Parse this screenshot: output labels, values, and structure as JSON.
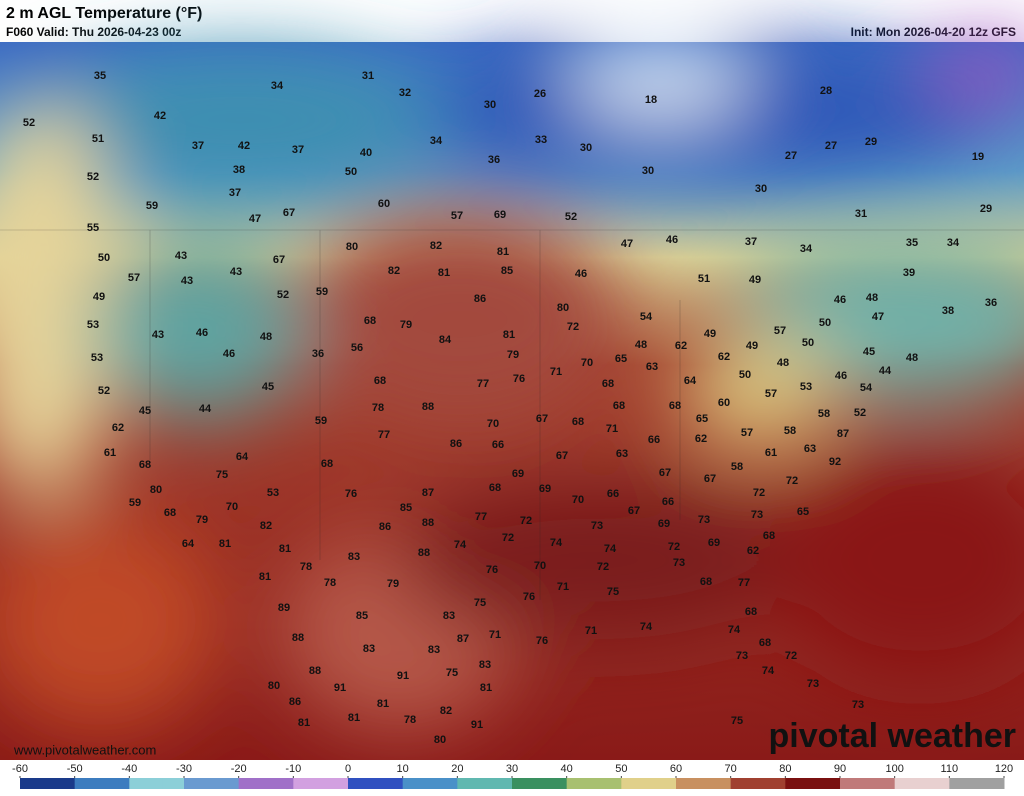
{
  "header": {
    "title": "2 m AGL Temperature (°F)",
    "valid": "F060 Valid: Thu 2026-04-23 00z",
    "init": "Init: Mon 2026-04-20 12z GFS"
  },
  "map_labels": [
    35,
    34,
    31,
    32,
    30,
    26,
    18,
    28,
    52,
    42,
    51,
    37,
    42,
    37,
    40,
    34,
    33,
    30,
    27,
    27,
    29,
    19,
    36,
    38,
    50,
    30,
    52,
    37,
    59,
    60,
    47,
    67,
    57,
    69,
    52,
    30,
    31,
    29,
    55,
    80,
    82,
    81,
    47,
    46,
    37,
    34,
    35,
    34,
    50,
    43,
    67,
    82,
    81,
    85,
    46,
    51,
    49,
    39,
    57,
    43,
    43,
    52,
    59,
    86,
    80,
    46,
    48,
    38,
    36,
    49,
    53,
    43,
    46,
    48,
    68,
    79,
    84,
    81,
    72,
    54,
    49,
    57,
    50,
    47,
    48,
    62,
    50,
    49,
    53,
    46,
    36,
    56,
    79,
    65,
    70,
    71,
    63,
    62,
    45,
    48,
    48,
    50,
    44,
    46,
    52,
    45,
    68,
    77,
    76,
    68,
    64,
    57,
    53,
    54,
    45,
    44,
    78,
    88,
    68,
    68,
    60,
    58,
    52,
    59,
    70,
    67,
    68,
    71,
    65,
    58,
    87,
    62,
    77,
    86,
    66,
    66,
    62,
    57,
    63,
    61,
    64,
    67,
    63,
    61,
    92,
    68,
    68,
    69,
    67,
    58,
    67,
    72,
    75,
    80,
    68,
    69,
    87,
    53,
    76,
    70,
    66,
    66,
    72,
    59,
    85,
    67,
    73,
    65,
    70,
    68,
    79,
    77,
    72,
    88,
    86,
    69,
    73,
    82,
    73,
    68,
    72,
    74,
    69,
    64,
    81,
    81,
    74,
    88,
    74,
    72,
    83,
    62,
    73,
    78,
    76,
    70,
    72,
    81,
    78,
    79,
    71,
    68,
    77,
    76,
    75,
    75,
    89,
    85,
    83,
    68,
    88,
    87,
    71,
    74,
    76,
    74,
    68,
    83,
    83,
    71,
    88,
    91,
    75,
    83,
    73,
    74,
    72,
    80,
    91,
    81,
    73,
    86,
    81,
    73,
    81,
    81,
    78,
    82,
    91,
    80,
    75
  ],
  "website": "www.pivotalweather.com",
  "watermark": "pivotal weather",
  "colorbar": {
    "ticks": [
      -60,
      -50,
      -40,
      -30,
      -20,
      -10,
      0,
      10,
      20,
      30,
      40,
      50,
      60,
      70,
      80,
      90,
      100,
      110,
      120
    ]
  }
}
